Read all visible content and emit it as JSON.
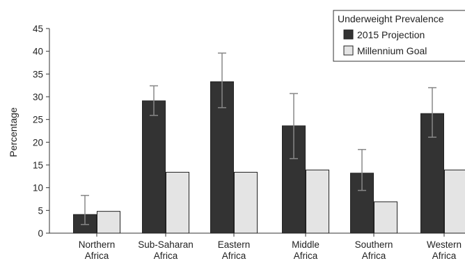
{
  "chart_data": {
    "type": "bar",
    "title": "",
    "xlabel": "",
    "ylabel": "Percentage",
    "ylim": [
      0,
      45
    ],
    "yticks": [
      0,
      5,
      10,
      15,
      20,
      25,
      30,
      35,
      40,
      45
    ],
    "grid": false,
    "legend": {
      "title": "Underweight Prevalence",
      "placement": "top-right"
    },
    "categories": [
      [
        "Northern",
        "Africa"
      ],
      [
        "Sub-Saharan",
        "Africa"
      ],
      [
        "Eastern",
        "Africa"
      ],
      [
        "Middle",
        "Africa"
      ],
      [
        "Southern",
        "Africa"
      ],
      [
        "Western",
        "Africa"
      ]
    ],
    "series": [
      {
        "name": "2015 Projection",
        "color": "#333333",
        "values": [
          4.1,
          29.1,
          33.3,
          23.6,
          13.2,
          26.3
        ],
        "error_low": [
          1.9,
          25.9,
          27.6,
          16.4,
          9.4,
          21.1
        ],
        "error_high": [
          8.3,
          32.4,
          39.6,
          30.7,
          18.4,
          32.0
        ]
      },
      {
        "name": "Millennium Goal",
        "color": "#e4e4e4",
        "values": [
          4.8,
          13.4,
          13.4,
          13.9,
          6.9,
          13.9
        ]
      }
    ]
  }
}
